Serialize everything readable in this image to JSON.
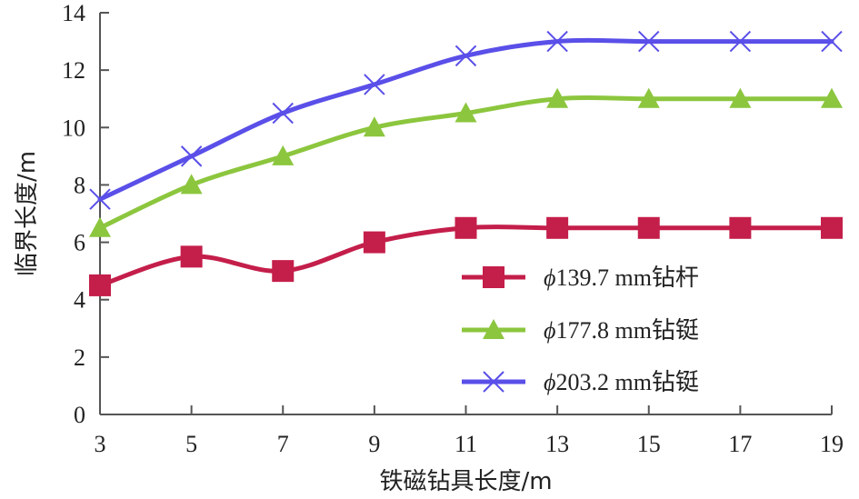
{
  "chart_data": {
    "type": "line",
    "xlabel": "铁磁钻具长度/m",
    "ylabel": "临界长度/m",
    "x": [
      3,
      5,
      7,
      9,
      11,
      13,
      15,
      17,
      19
    ],
    "xlim": [
      3,
      19
    ],
    "ylim": [
      0,
      14
    ],
    "x_ticks": [
      3,
      5,
      7,
      9,
      11,
      13,
      15,
      17,
      19
    ],
    "y_ticks": [
      0,
      2,
      4,
      6,
      8,
      10,
      12,
      14
    ],
    "grid": false,
    "legend_position": "bottom-right",
    "series": [
      {
        "name": "ϕ139.7 mm钻杆",
        "name_symbol": "ϕ",
        "name_rest": "139.7 mm钻杆",
        "marker": "square",
        "color": "#c41e4a",
        "values": [
          4.5,
          5.5,
          5.0,
          6.0,
          6.5,
          6.5,
          6.5,
          6.5,
          6.5
        ]
      },
      {
        "name": "ϕ177.8 mm钻铤",
        "name_symbol": "ϕ",
        "name_rest": "177.8 mm钻铤",
        "marker": "triangle",
        "color": "#8cc63e",
        "values": [
          6.5,
          8.0,
          9.0,
          10.0,
          10.5,
          11.0,
          11.0,
          11.0,
          11.0
        ]
      },
      {
        "name": "ϕ203.2 mm钻铤",
        "name_symbol": "ϕ",
        "name_rest": "203.2 mm钻铤",
        "marker": "x",
        "color": "#5a4fe8",
        "values": [
          7.5,
          9.0,
          10.5,
          11.5,
          12.5,
          13.0,
          13.0,
          13.0,
          13.0
        ]
      }
    ]
  }
}
